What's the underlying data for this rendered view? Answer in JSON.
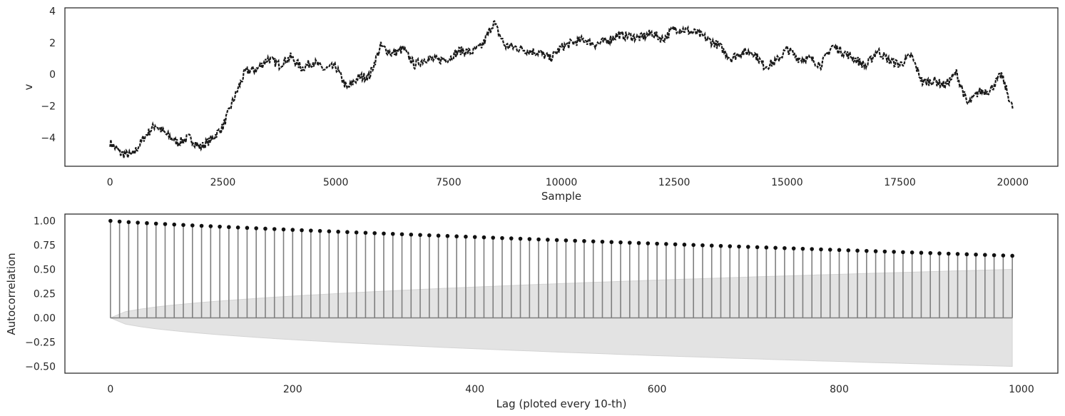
{
  "chart_data": [
    {
      "type": "line",
      "title": "",
      "xlabel": "Sample",
      "ylabel": "v",
      "xlim": [
        -1000,
        21000
      ],
      "ylim": [
        -5.8,
        4.2
      ],
      "xticks": [
        0,
        2500,
        5000,
        7500,
        10000,
        12500,
        15000,
        17500,
        20000
      ],
      "yticks": [
        -4,
        -2,
        0,
        2,
        4
      ],
      "grid": false,
      "color": "#1a1a1a",
      "series": [
        {
          "x": [
            0,
            250,
            500,
            750,
            1000,
            1250,
            1500,
            1750,
            2000,
            2250,
            2500,
            2750,
            3000,
            3250,
            3500,
            3750,
            4000,
            4250,
            4500,
            4750,
            5000,
            5250,
            5500,
            5750,
            6000,
            6250,
            6500,
            6750,
            7000,
            7250,
            7500,
            7750,
            8000,
            8250,
            8500,
            8750,
            9000,
            9250,
            9500,
            9750,
            10000,
            10250,
            10500,
            10750,
            11000,
            11250,
            11500,
            11750,
            12000,
            12250,
            12500,
            12750,
            13000,
            13250,
            13500,
            13750,
            14000,
            14250,
            14500,
            14750,
            15000,
            15250,
            15500,
            15750,
            16000,
            16250,
            16500,
            16750,
            17000,
            17250,
            17500,
            17750,
            18000,
            18250,
            18500,
            18750,
            19000,
            19250,
            19500,
            19750,
            20000
          ],
          "y": [
            -4.3,
            -5.0,
            -5.1,
            -4.0,
            -3.2,
            -3.8,
            -4.3,
            -4.0,
            -4.6,
            -4.1,
            -3.3,
            -1.5,
            0.2,
            0.3,
            1.0,
            0.6,
            1.1,
            0.4,
            0.8,
            0.3,
            0.5,
            -0.9,
            -0.2,
            -0.1,
            1.8,
            1.3,
            1.6,
            0.6,
            1.0,
            0.9,
            1.0,
            1.5,
            1.4,
            1.8,
            3.3,
            1.8,
            1.7,
            1.5,
            1.4,
            1.0,
            1.7,
            2.0,
            2.2,
            1.9,
            2.1,
            2.5,
            2.4,
            2.3,
            2.6,
            2.2,
            2.9,
            2.8,
            2.6,
            2.2,
            1.8,
            1.0,
            1.4,
            1.4,
            0.5,
            0.8,
            1.6,
            1.0,
            1.0,
            0.6,
            1.8,
            1.4,
            1.0,
            0.5,
            1.5,
            0.9,
            0.6,
            1.2,
            -0.5,
            -0.4,
            -0.7,
            0.1,
            -1.9,
            -1.1,
            -1.0,
            0.0,
            -2.2
          ]
        }
      ]
    },
    {
      "type": "stem",
      "title": "",
      "xlabel": "Lag (ploted every 10-th)",
      "ylabel": "Autocorrelation",
      "xlim": [
        -50,
        1040
      ],
      "ylim": [
        -0.57,
        1.07
      ],
      "xticks": [
        0,
        200,
        400,
        600,
        800,
        1000
      ],
      "yticks": [
        -0.5,
        -0.25,
        0.0,
        0.25,
        0.5,
        0.75,
        1.0
      ],
      "grid": false,
      "lags_start": 0,
      "lags_step": 10,
      "acf_start": 1.0,
      "acf_end": 0.64,
      "n_lags": 100,
      "confidence_band_end": 0.5,
      "band_color": "#e3e3e3",
      "stem_color": "#7f7f7f",
      "marker_color": "#111111"
    }
  ]
}
